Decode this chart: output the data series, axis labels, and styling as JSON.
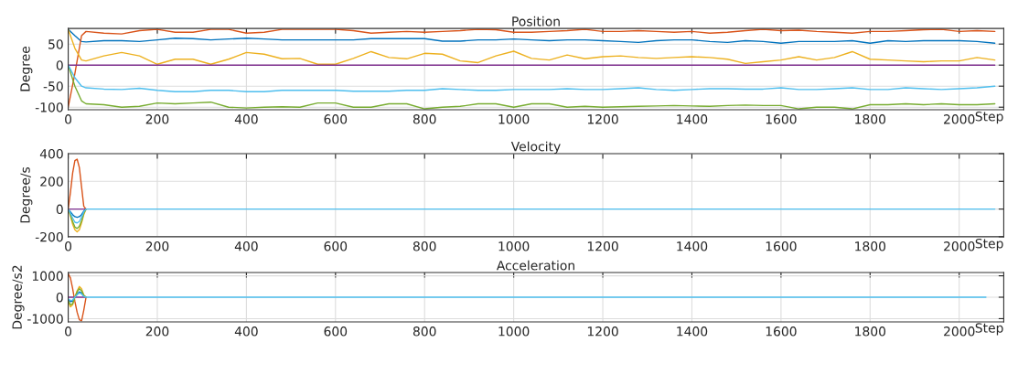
{
  "chart_data": [
    {
      "type": "line",
      "title": "Position",
      "xlabel": "Step",
      "ylabel": "Degree",
      "x": [
        0,
        15,
        30,
        40,
        80,
        120,
        160,
        200,
        240,
        280,
        320,
        360,
        400,
        440,
        480,
        520,
        560,
        600,
        640,
        680,
        720,
        760,
        800,
        840,
        880,
        920,
        960,
        1000,
        1040,
        1080,
        1120,
        1160,
        1200,
        1240,
        1280,
        1320,
        1360,
        1400,
        1440,
        1480,
        1520,
        1560,
        1600,
        1640,
        1680,
        1720,
        1760,
        1800,
        1840,
        1880,
        1920,
        1960,
        2000,
        2040,
        2080
      ],
      "series": [
        {
          "color": "#0072bd",
          "values": [
            85,
            70,
            56,
            55,
            58,
            58,
            56,
            60,
            64,
            63,
            60,
            62,
            64,
            62,
            60,
            60,
            60,
            60,
            60,
            63,
            63,
            63,
            63,
            57,
            57,
            60,
            60,
            62,
            60,
            58,
            60,
            60,
            58,
            56,
            54,
            58,
            60,
            60,
            56,
            54,
            58,
            56,
            52,
            56,
            56,
            56,
            58,
            52,
            58,
            56,
            58,
            58,
            58,
            56,
            52
          ]
        },
        {
          "color": "#d95319",
          "values": [
            -100,
            -20,
            70,
            80,
            76,
            74,
            82,
            85,
            78,
            78,
            85,
            85,
            76,
            78,
            85,
            85,
            85,
            85,
            82,
            76,
            78,
            80,
            78,
            80,
            82,
            85,
            84,
            78,
            78,
            80,
            82,
            85,
            80,
            80,
            82,
            80,
            78,
            80,
            76,
            78,
            82,
            85,
            82,
            83,
            80,
            78,
            76,
            80,
            80,
            82,
            84,
            85,
            80,
            82,
            80
          ]
        },
        {
          "color": "#edb120",
          "values": [
            85,
            40,
            12,
            10,
            22,
            30,
            22,
            2,
            14,
            14,
            2,
            14,
            30,
            26,
            15,
            16,
            2,
            2,
            16,
            32,
            18,
            15,
            28,
            26,
            10,
            6,
            22,
            33,
            16,
            12,
            24,
            15,
            20,
            22,
            18,
            16,
            18,
            20,
            18,
            14,
            4,
            8,
            12,
            20,
            12,
            18,
            32,
            14,
            12,
            10,
            8,
            10,
            10,
            18,
            12
          ]
        },
        {
          "color": "#7e2f8e",
          "values": [
            0,
            0,
            0,
            0,
            0,
            0,
            0,
            0,
            0,
            0,
            0,
            0,
            0,
            0,
            0,
            0,
            0,
            0,
            0,
            0,
            0,
            0,
            0,
            0,
            0,
            0,
            0,
            0,
            0,
            0,
            0,
            0,
            0,
            0,
            0,
            0,
            0,
            0,
            0,
            0,
            0,
            0,
            0,
            0,
            0,
            0,
            0,
            0,
            0,
            0,
            0,
            0,
            0,
            0,
            0
          ]
        },
        {
          "color": "#77ac30",
          "values": [
            0,
            -50,
            -85,
            -92,
            -94,
            -100,
            -98,
            -90,
            -92,
            -90,
            -88,
            -100,
            -102,
            -100,
            -99,
            -100,
            -90,
            -90,
            -100,
            -100,
            -92,
            -92,
            -104,
            -100,
            -98,
            -92,
            -92,
            -100,
            -92,
            -92,
            -100,
            -98,
            -100,
            -99,
            -98,
            -97,
            -96,
            -97,
            -98,
            -96,
            -95,
            -96,
            -96,
            -104,
            -100,
            -100,
            -104,
            -94,
            -94,
            -92,
            -94,
            -92,
            -94,
            -94,
            -92
          ]
        },
        {
          "color": "#4dbeee",
          "values": [
            0,
            -30,
            -50,
            -54,
            -57,
            -58,
            -55,
            -60,
            -63,
            -63,
            -60,
            -60,
            -63,
            -63,
            -60,
            -60,
            -60,
            -60,
            -62,
            -62,
            -62,
            -60,
            -60,
            -56,
            -58,
            -60,
            -60,
            -58,
            -58,
            -58,
            -56,
            -58,
            -58,
            -56,
            -54,
            -58,
            -60,
            -58,
            -56,
            -56,
            -57,
            -57,
            -54,
            -58,
            -58,
            -56,
            -54,
            -58,
            -58,
            -54,
            -56,
            -58,
            -56,
            -54,
            -50
          ]
        }
      ],
      "xlim": [
        0,
        2100
      ],
      "ylim": [
        -106,
        87
      ],
      "xticks": [
        0,
        200,
        400,
        600,
        800,
        1000,
        1200,
        1400,
        1600,
        1800,
        2000
      ],
      "yticks": [
        -100,
        -50,
        0,
        50
      ],
      "grid": true
    },
    {
      "type": "line",
      "title": "Velocity",
      "xlabel": "Step",
      "ylabel": "Degree/s",
      "x": [
        0,
        5,
        10,
        15,
        20,
        25,
        30,
        35,
        40,
        2080
      ],
      "series": [
        {
          "color": "#0072bd",
          "values": [
            0,
            -20,
            -40,
            -55,
            -60,
            -55,
            -40,
            -15,
            0,
            null
          ]
        },
        {
          "color": "#d95319",
          "values": [
            0,
            120,
            260,
            350,
            360,
            300,
            160,
            20,
            0,
            null
          ]
        },
        {
          "color": "#edb120",
          "values": [
            0,
            -50,
            -110,
            -150,
            -165,
            -150,
            -100,
            -40,
            0,
            null
          ]
        },
        {
          "color": "#7e2f8e",
          "values": [
            0,
            0,
            0,
            0,
            0,
            0,
            0,
            0,
            0,
            null
          ]
        },
        {
          "color": "#77ac30",
          "values": [
            0,
            -40,
            -90,
            -130,
            -140,
            -125,
            -85,
            -30,
            0,
            null
          ]
        },
        {
          "color": "#4dbeee",
          "values": [
            0,
            -30,
            -65,
            -95,
            -100,
            -90,
            -60,
            -20,
            0,
            0
          ]
        }
      ],
      "xlim": [
        0,
        2100
      ],
      "ylim": [
        -200,
        400
      ],
      "xticks": [
        0,
        200,
        400,
        600,
        800,
        1000,
        1200,
        1400,
        1600,
        1800,
        2000
      ],
      "yticks": [
        -200,
        0,
        200,
        400
      ],
      "grid": true
    },
    {
      "type": "line",
      "title": "Acceleration",
      "xlabel": "Step",
      "ylabel": "Degree/s2",
      "x": [
        0,
        5,
        10,
        15,
        20,
        25,
        30,
        35,
        40,
        45,
        2060
      ],
      "series": [
        {
          "color": "#0072bd",
          "values": [
            -100,
            -200,
            -180,
            0,
            150,
            250,
            200,
            50,
            0,
            null,
            null
          ]
        },
        {
          "color": "#d95319",
          "values": [
            1100,
            900,
            400,
            -200,
            -700,
            -1050,
            -1100,
            -600,
            0,
            null,
            null
          ]
        },
        {
          "color": "#edb120",
          "values": [
            -200,
            -450,
            -350,
            0,
            300,
            500,
            400,
            100,
            0,
            null,
            null
          ]
        },
        {
          "color": "#7e2f8e",
          "values": [
            0,
            0,
            0,
            0,
            0,
            0,
            0,
            0,
            0,
            null,
            null
          ]
        },
        {
          "color": "#77ac30",
          "values": [
            -150,
            -350,
            -300,
            0,
            250,
            400,
            300,
            80,
            0,
            null,
            null
          ]
        },
        {
          "color": "#4dbeee",
          "values": [
            -80,
            -150,
            -130,
            0,
            120,
            200,
            150,
            40,
            0,
            0,
            0
          ]
        }
      ],
      "xlim": [
        0,
        2100
      ],
      "ylim": [
        -1150,
        1150
      ],
      "xticks": [
        0,
        200,
        400,
        600,
        800,
        1000,
        1200,
        1400,
        1600,
        1800,
        2000
      ],
      "yticks": [
        -1000,
        0,
        1000
      ],
      "grid": true
    }
  ]
}
